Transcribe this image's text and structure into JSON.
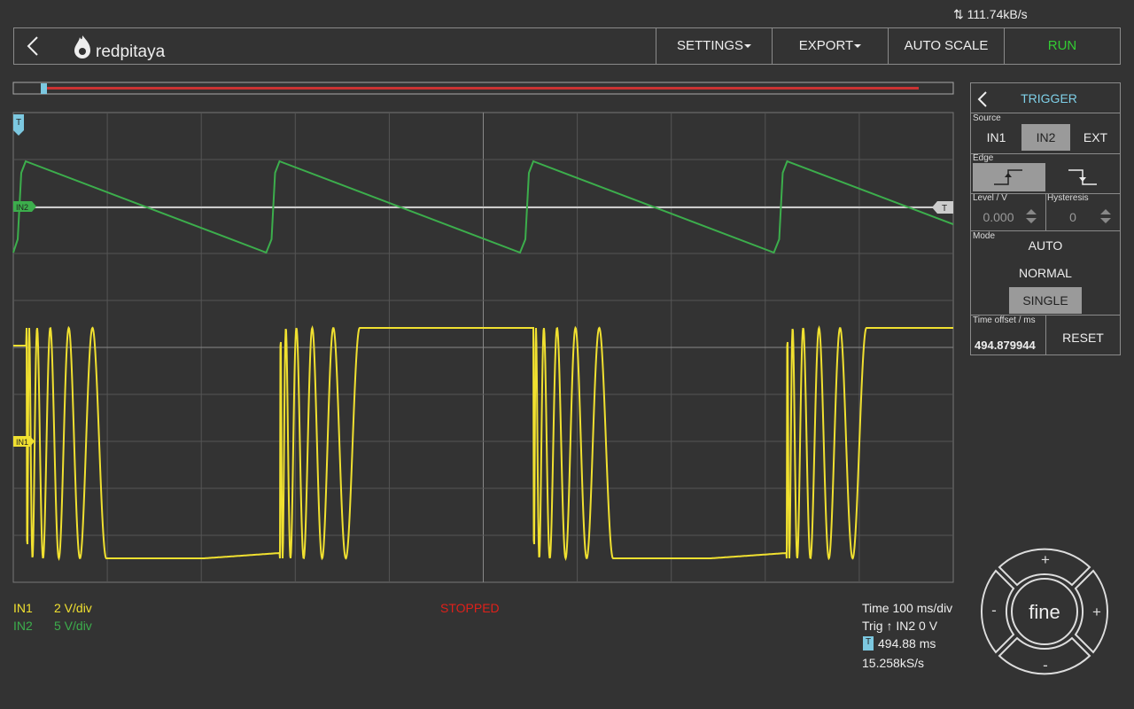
{
  "status_bar": {
    "rate": "111.74kB/s"
  },
  "header": {
    "logo": "redpitaya",
    "menu": [
      "SETTINGS",
      "EXPORT",
      "AUTO SCALE",
      "RUN"
    ]
  },
  "plot": {
    "markers": {
      "trigger_time": "T",
      "in2": "IN2",
      "in1": "IN1",
      "trigger_level": "T"
    }
  },
  "trigger_panel": {
    "title": "TRIGGER",
    "source_label": "Source",
    "sources": [
      "IN1",
      "IN2",
      "EXT"
    ],
    "edge_label": "Edge",
    "level_label": "Level / V",
    "level": "0.000",
    "hysteresis_label": "Hysteresis",
    "hysteresis": "0",
    "mode_label": "Mode",
    "modes": [
      "AUTO",
      "NORMAL",
      "SINGLE"
    ],
    "offset_label": "Time offset / ms",
    "offset": "494.879944",
    "reset": "RESET"
  },
  "footer": {
    "channels": [
      {
        "name": "IN1",
        "scale": "2 V/div"
      },
      {
        "name": "IN2",
        "scale": "5 V/div"
      }
    ],
    "status": "STOPPED",
    "time": "Time 100 ms/div",
    "trig": "Trig ↑ IN2 0 V",
    "offset_icon": "T",
    "offset": "494.88 ms",
    "sample_rate": "15.258kS/s"
  },
  "jog": {
    "top": "+",
    "left": "-",
    "center": "fine",
    "right": "+",
    "bottom": "-"
  }
}
